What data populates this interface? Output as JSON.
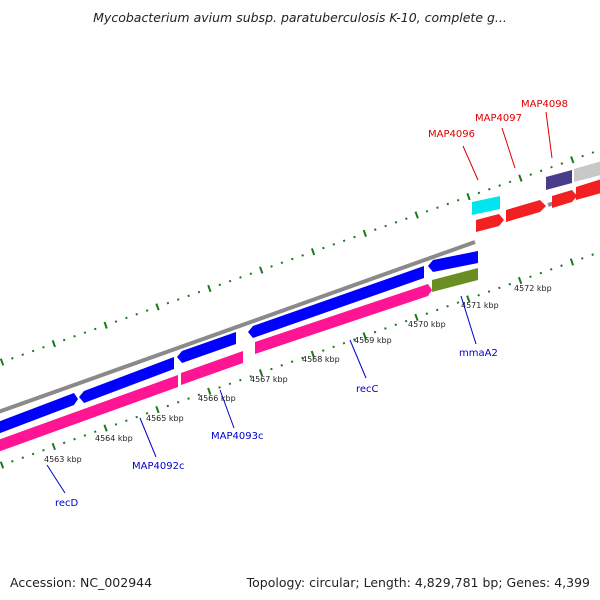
{
  "title": "Mycobacterium avium subsp. paratuberculosis K-10, complete g...",
  "footer": {
    "accession": "Accession: NC_002944",
    "topology": "Topology: circular; Length: 4,829,781 bp; Genes: 4,399"
  },
  "colors": {
    "backbone": "#8a8a8a",
    "forward_gene": "#0000ff",
    "reverse_gene": "#ff1493",
    "rna_gene": "#f22020",
    "cyan_gene": "#00e5ee",
    "olive_gene": "#6b8e23",
    "navy_gene": "#483d8b",
    "tick": "#1a7a1a",
    "label_blue": "#0000cc",
    "label_red": "#dd0000"
  },
  "scale_labels": [
    {
      "text": "4563 kbp",
      "kbp": 4563
    },
    {
      "text": "4564 kbp",
      "kbp": 4564
    },
    {
      "text": "4565 kbp",
      "kbp": 4565
    },
    {
      "text": "4566 kbp",
      "kbp": 4566
    },
    {
      "text": "4567 kbp",
      "kbp": 4567
    },
    {
      "text": "4568 kbp",
      "kbp": 4568
    },
    {
      "text": "4569 kbp",
      "kbp": 4569
    },
    {
      "text": "4570 kbp",
      "kbp": 4570
    },
    {
      "text": "4571 kbp",
      "kbp": 4571
    },
    {
      "text": "4572 kbp",
      "kbp": 4572
    }
  ],
  "gene_labels": [
    {
      "name": "recD",
      "strand": "reverse"
    },
    {
      "name": "MAP4092c",
      "strand": "reverse"
    },
    {
      "name": "MAP4093c",
      "strand": "reverse"
    },
    {
      "name": "recC",
      "strand": "reverse"
    },
    {
      "name": "mmaA2",
      "strand": "reverse"
    },
    {
      "name": "MAP4096",
      "strand": "forward"
    },
    {
      "name": "MAP4097",
      "strand": "forward"
    },
    {
      "name": "MAP4098",
      "strand": "forward"
    }
  ]
}
